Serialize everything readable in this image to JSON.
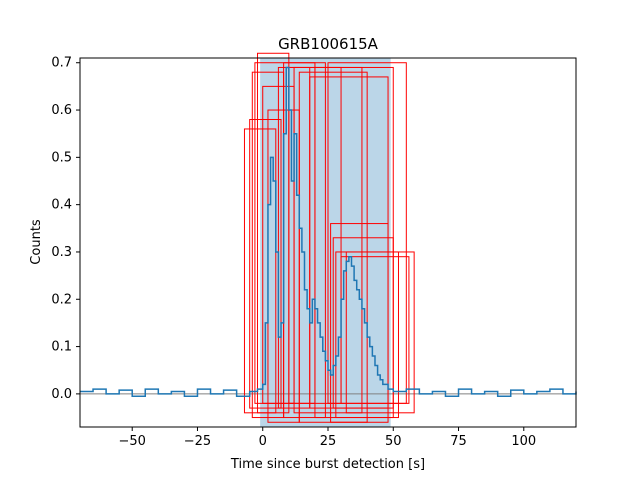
{
  "chart_data": {
    "type": "line",
    "title": "GRB100615A",
    "xlabel": "Time since burst detection [s]",
    "ylabel": "Counts",
    "xlim": [
      -70,
      120
    ],
    "ylim": [
      -0.07,
      0.71
    ],
    "xticks": [
      -50,
      -25,
      0,
      25,
      50,
      75,
      100
    ],
    "yticks": [
      0.0,
      0.1,
      0.2,
      0.3,
      0.4,
      0.5,
      0.6,
      0.7
    ],
    "xtick_labels": [
      "−50",
      "−25",
      "0",
      "25",
      "50",
      "75",
      "100"
    ],
    "ytick_labels": [
      "0.0",
      "0.1",
      "0.2",
      "0.3",
      "0.4",
      "0.5",
      "0.6",
      "0.7"
    ],
    "grid": false,
    "colors": {
      "lightcurve": "#1f77b4",
      "duration_span": "#1f77b4",
      "boxes": "#ff0000",
      "baseline": "#808080"
    },
    "duration_span": {
      "x0": -1,
      "x1": 49,
      "alpha": 0.3
    },
    "series": [
      {
        "points": [
          [
            -70,
            0.005
          ],
          [
            -65,
            0.01
          ],
          [
            -60,
            0.0
          ],
          [
            -55,
            0.008
          ],
          [
            -50,
            -0.005
          ],
          [
            -45,
            0.01
          ],
          [
            -40,
            0.0
          ],
          [
            -35,
            0.005
          ],
          [
            -30,
            -0.005
          ],
          [
            -25,
            0.01
          ],
          [
            -20,
            0.0
          ],
          [
            -15,
            0.008
          ],
          [
            -10,
            -0.005
          ],
          [
            -5,
            0.005
          ],
          [
            -2,
            0.01
          ],
          [
            0,
            0.02
          ],
          [
            1,
            0.15
          ],
          [
            2,
            0.4
          ],
          [
            3,
            0.5
          ],
          [
            4,
            0.45
          ],
          [
            5,
            0.3
          ],
          [
            6,
            0.12
          ],
          [
            7,
            0.15
          ],
          [
            8,
            0.55
          ],
          [
            9,
            0.69
          ],
          [
            10,
            0.6
          ],
          [
            11,
            0.45
          ],
          [
            12,
            0.55
          ],
          [
            13,
            0.42
          ],
          [
            14,
            0.35
          ],
          [
            15,
            0.3
          ],
          [
            16,
            0.22
          ],
          [
            17,
            0.18
          ],
          [
            18,
            0.15
          ],
          [
            19,
            0.2
          ],
          [
            20,
            0.18
          ],
          [
            21,
            0.15
          ],
          [
            22,
            0.12
          ],
          [
            23,
            0.09
          ],
          [
            24,
            0.07
          ],
          [
            25,
            0.05
          ],
          [
            26,
            0.04
          ],
          [
            27,
            0.06
          ],
          [
            28,
            0.08
          ],
          [
            29,
            0.12
          ],
          [
            30,
            0.2
          ],
          [
            31,
            0.26
          ],
          [
            32,
            0.28
          ],
          [
            33,
            0.29
          ],
          [
            34,
            0.27
          ],
          [
            35,
            0.24
          ],
          [
            36,
            0.22
          ],
          [
            37,
            0.2
          ],
          [
            38,
            0.18
          ],
          [
            39,
            0.15
          ],
          [
            40,
            0.12
          ],
          [
            41,
            0.1
          ],
          [
            42,
            0.08
          ],
          [
            43,
            0.06
          ],
          [
            44,
            0.04
          ],
          [
            45,
            0.03
          ],
          [
            46,
            0.02
          ],
          [
            48,
            0.01
          ],
          [
            50,
            0.005
          ],
          [
            55,
            0.01
          ],
          [
            60,
            0.0
          ],
          [
            65,
            0.005
          ],
          [
            70,
            -0.005
          ],
          [
            75,
            0.01
          ],
          [
            80,
            0.0
          ],
          [
            85,
            0.005
          ],
          [
            90,
            -0.005
          ],
          [
            95,
            0.008
          ],
          [
            100,
            0.0
          ],
          [
            105,
            0.005
          ],
          [
            110,
            0.01
          ],
          [
            115,
            0.0
          ],
          [
            120,
            0.005
          ]
        ]
      }
    ],
    "boxes": [
      {
        "x0": -7,
        "x1": 5,
        "y0": -0.04,
        "y1": 0.56
      },
      {
        "x0": -5,
        "x1": 7,
        "y0": -0.03,
        "y1": 0.58
      },
      {
        "x0": -4,
        "x1": 8,
        "y0": -0.05,
        "y1": 0.68
      },
      {
        "x0": -3,
        "x1": 20,
        "y0": -0.02,
        "y1": 0.7
      },
      {
        "x0": -2,
        "x1": 10,
        "y0": -0.04,
        "y1": 0.72
      },
      {
        "x0": 0,
        "x1": 12,
        "y0": -0.02,
        "y1": 0.65
      },
      {
        "x0": 2,
        "x1": 14,
        "y0": -0.06,
        "y1": 0.6
      },
      {
        "x0": 6,
        "x1": 18,
        "y0": -0.03,
        "y1": 0.69
      },
      {
        "x0": 8,
        "x1": 24,
        "y0": -0.05,
        "y1": 0.7
      },
      {
        "x0": 10,
        "x1": 30,
        "y0": -0.02,
        "y1": 0.69
      },
      {
        "x0": 12,
        "x1": 38,
        "y0": -0.04,
        "y1": 0.69
      },
      {
        "x0": 14,
        "x1": 40,
        "y0": -0.06,
        "y1": 0.68
      },
      {
        "x0": 18,
        "x1": 48,
        "y0": -0.03,
        "y1": 0.67
      },
      {
        "x0": 20,
        "x1": 50,
        "y0": -0.05,
        "y1": 0.69
      },
      {
        "x0": 25,
        "x1": 55,
        "y0": -0.02,
        "y1": 0.7
      },
      {
        "x0": 26,
        "x1": 48,
        "y0": -0.06,
        "y1": 0.36
      },
      {
        "x0": 27,
        "x1": 50,
        "y0": -0.03,
        "y1": 0.33
      },
      {
        "x0": 28,
        "x1": 52,
        "y0": -0.05,
        "y1": 0.3
      },
      {
        "x0": 30,
        "x1": 56,
        "y0": -0.02,
        "y1": 0.29
      },
      {
        "x0": 32,
        "x1": 58,
        "y0": -0.04,
        "y1": 0.3
      }
    ]
  }
}
